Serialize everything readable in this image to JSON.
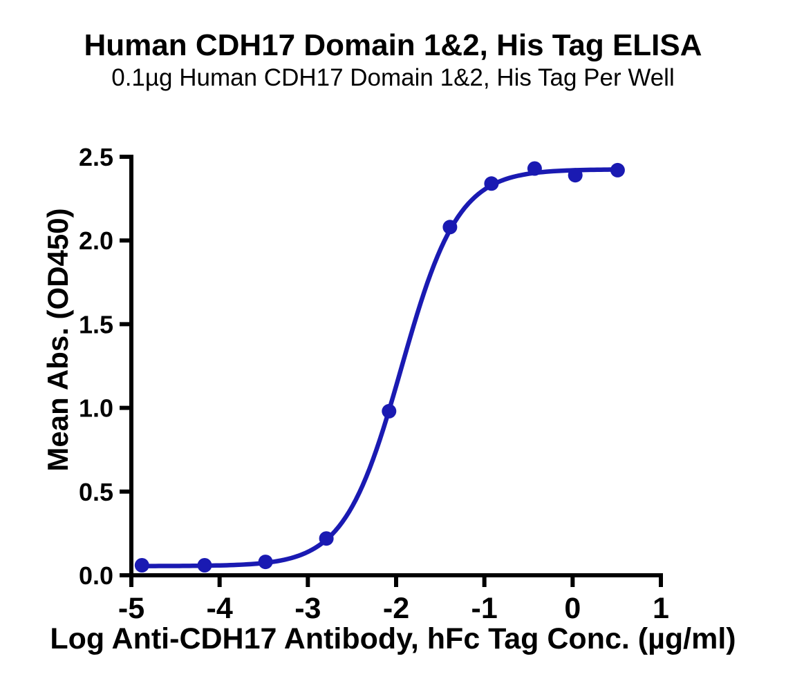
{
  "chart_data": {
    "type": "scatter",
    "title": "Human CDH17 Domain 1&2, His Tag ELISA",
    "subtitle": "0.1µg Human CDH17 Domain 1&2, His Tag Per Well",
    "xlabel": "Log Anti-CDH17 Antibody, hFc Tag Conc. (µg/ml)",
    "ylabel": "Mean Abs. (OD450)",
    "xlim": [
      -5,
      1
    ],
    "ylim": [
      0,
      2.5
    ],
    "x_ticks": [
      -5,
      -4,
      -3,
      -2,
      -1,
      0,
      1
    ],
    "x_tick_labels": [
      "-5",
      "-4",
      "-3",
      "-2",
      "-1",
      "0",
      "1"
    ],
    "y_ticks": [
      0.0,
      0.5,
      1.0,
      1.5,
      2.0,
      2.5
    ],
    "y_tick_labels": [
      "0.0",
      "0.5",
      "1.0",
      "1.5",
      "2.0",
      "2.5"
    ],
    "grid": false,
    "legend": "none",
    "axis_color": "#000000",
    "series": [
      {
        "color": "#1a1ab2",
        "marker": "circle",
        "x": [
          -4.88,
          -4.17,
          -3.48,
          -2.79,
          -2.08,
          -1.39,
          -0.92,
          -0.43,
          0.03,
          0.51
        ],
        "y": [
          0.06,
          0.06,
          0.08,
          0.22,
          0.98,
          2.08,
          2.34,
          2.43,
          2.39,
          2.42
        ]
      }
    ],
    "fit_curve": {
      "model": "4PL-sigmoid",
      "bottom": 0.055,
      "top": 2.425,
      "logEC50": -1.94,
      "hillslope": 1.35,
      "x_range": [
        -4.88,
        0.51
      ]
    }
  }
}
